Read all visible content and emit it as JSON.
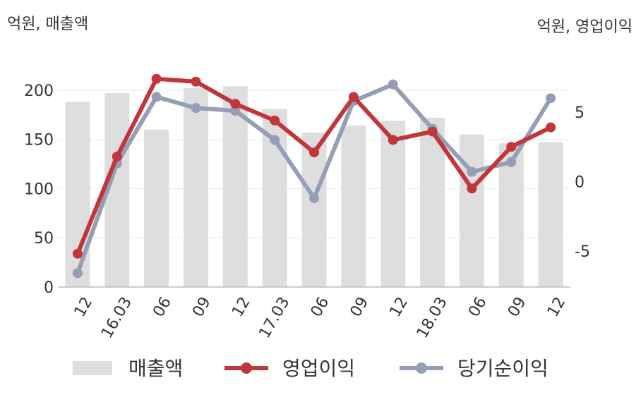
{
  "chart_data": {
    "type": "bar+line",
    "left_axis_unit": "억원, 매출액",
    "right_axis_unit": "억원, 영업이익",
    "categories": [
      "12",
      "16.03",
      "06",
      "09",
      "12",
      "17.03",
      "06",
      "09",
      "12",
      "18.03",
      "06",
      "09",
      "12"
    ],
    "left_ylim": [
      0,
      220
    ],
    "left_yticks": [
      0,
      50,
      100,
      150,
      200
    ],
    "right_ylim": [
      -7.6,
      8.0
    ],
    "right_yticks": [
      -5,
      0,
      5
    ],
    "right_ytick_labels": [
      "-5",
      "0",
      "5"
    ],
    "grid": true,
    "legend_position": "bottom",
    "series": [
      {
        "name": "매출액",
        "type": "bar",
        "axis": "left",
        "color": "#dedede",
        "values": [
          188,
          197,
          160,
          202,
          204,
          181,
          157,
          164,
          169,
          172,
          155,
          146,
          147
        ]
      },
      {
        "name": "영업이익",
        "type": "line",
        "axis": "right",
        "color": "#c0363a",
        "values": [
          -5.2,
          1.8,
          7.4,
          7.2,
          5.6,
          4.4,
          2.1,
          6.1,
          3.0,
          3.6,
          -0.5,
          2.5,
          3.9
        ]
      },
      {
        "name": "당기순이익",
        "type": "line",
        "axis": "right",
        "color": "#949fb6",
        "values": [
          -6.6,
          1.3,
          6.1,
          5.3,
          5.1,
          3.0,
          -1.2,
          5.8,
          7.0,
          3.8,
          0.7,
          1.4,
          6.0
        ]
      }
    ]
  }
}
